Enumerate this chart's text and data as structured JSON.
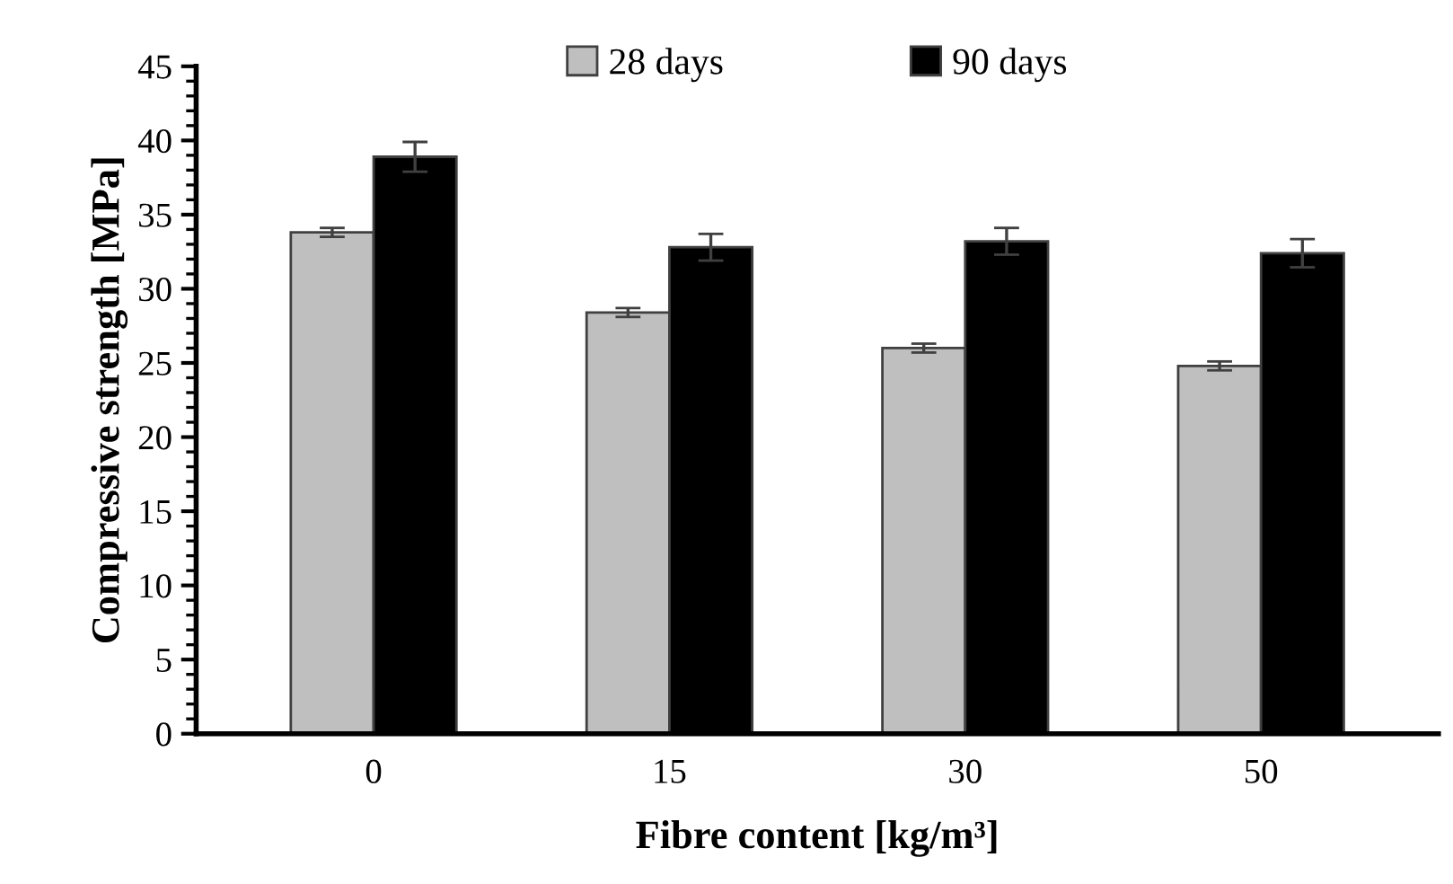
{
  "chart_data": {
    "type": "bar",
    "xlabel": "Fibre content [kg/m³]",
    "ylabel": "Compressive strength [MPa]",
    "categories": [
      "0",
      "15",
      "30",
      "50"
    ],
    "series": [
      {
        "name": "28 days",
        "color": "#bfbfbf",
        "values": [
          33.8,
          28.4,
          26.0,
          24.8
        ],
        "errors": [
          0.3,
          0.3,
          0.3,
          0.3
        ]
      },
      {
        "name": "90 days",
        "color": "#000000",
        "values": [
          38.9,
          32.8,
          33.2,
          32.4
        ],
        "errors": [
          1.0,
          0.9,
          0.9,
          0.95
        ]
      }
    ],
    "ylim": [
      0,
      45
    ],
    "yticks": [
      0,
      5,
      10,
      15,
      20,
      25,
      30,
      35,
      40,
      45
    ],
    "grid": false,
    "legend": "top"
  }
}
